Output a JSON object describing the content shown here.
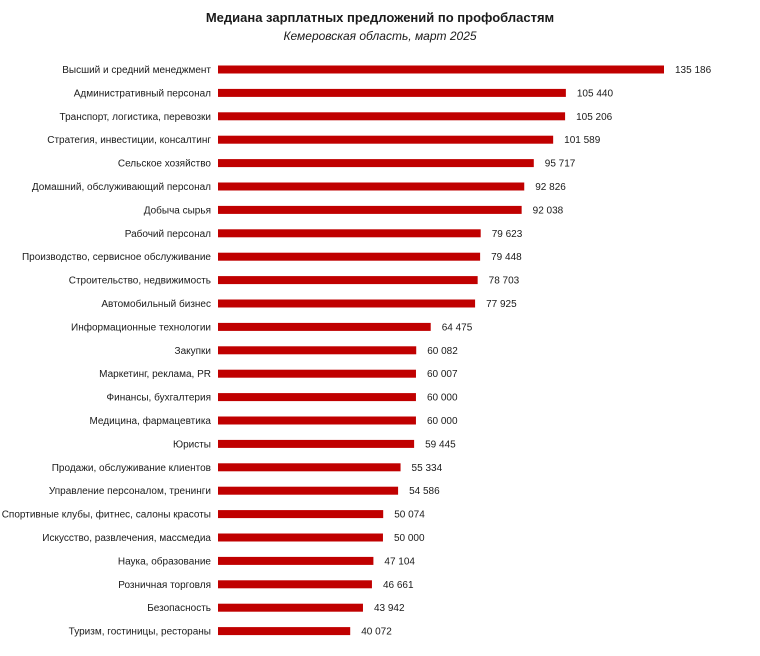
{
  "chart_data": {
    "type": "bar",
    "orientation": "horizontal",
    "title": "Медиана зарплатных предложений по профобластям",
    "subtitle": "Кемеровская область, март 2025",
    "bar_color": "#c00000",
    "categories": [
      "Высший и средний менеджмент",
      "Административный персонал",
      "Транспорт, логистика, перевозки",
      "Стратегия, инвестиции, консалтинг",
      "Сельское хозяйство",
      "Домашний, обслуживающий персонал",
      "Добыча сырья",
      "Рабочий персонал",
      "Производство, сервисное обслуживание",
      "Строительство, недвижимость",
      "Автомобильный бизнес",
      "Информационные технологии",
      "Закупки",
      "Маркетинг, реклама, PR",
      "Финансы, бухгалтерия",
      "Медицина, фармацевтика",
      "Юристы",
      "Продажи, обслуживание клиентов",
      "Управление персоналом, тренинги",
      "Спортивные клубы, фитнес, салоны красоты",
      "Искусство, развлечения, массмедиа",
      "Наука, образование",
      "Розничная торговля",
      "Безопасность",
      "Туризм, гостиницы, рестораны"
    ],
    "values": [
      135186,
      105440,
      105206,
      101589,
      95717,
      92826,
      92038,
      79623,
      79448,
      78703,
      77925,
      64475,
      60082,
      60007,
      60000,
      60000,
      59445,
      55334,
      54586,
      50074,
      50000,
      47104,
      46661,
      43942,
      40072
    ],
    "value_labels": [
      "135 186",
      "105 440",
      "105 206",
      "101 589",
      "95 717",
      "92 826",
      "92 038",
      "79 623",
      "79 448",
      "78 703",
      "77 925",
      "64 475",
      "60 082",
      "60 007",
      "60 000",
      "60 000",
      "59 445",
      "55 334",
      "54 586",
      "50 074",
      "50 000",
      "47 104",
      "46 661",
      "43 942",
      "40 072"
    ],
    "xlim": [
      0,
      135186
    ],
    "grid": false,
    "legend": "none"
  }
}
